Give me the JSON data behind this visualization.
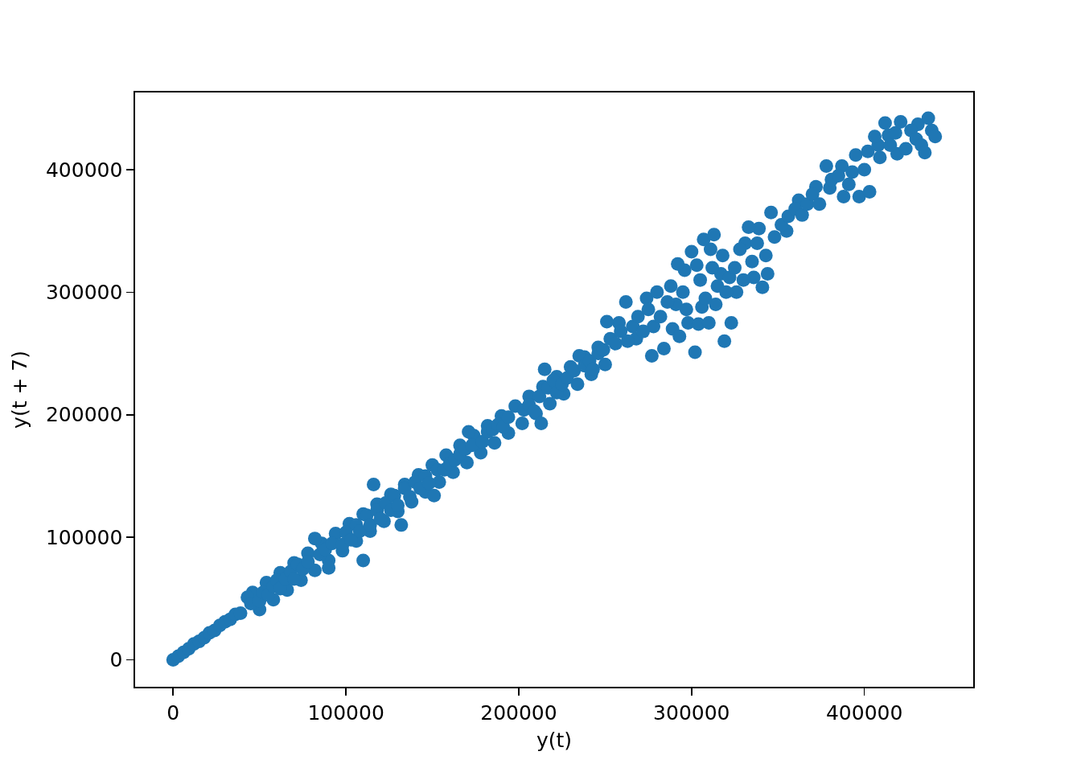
{
  "chart_data": {
    "type": "scatter",
    "xlabel": "y(t)",
    "ylabel": "y(t + 7)",
    "xlim": [
      -22000,
      463000
    ],
    "ylim": [
      -22000,
      463000
    ],
    "xticks": [
      0,
      100000,
      200000,
      300000,
      400000
    ],
    "yticks": [
      0,
      100000,
      200000,
      300000,
      400000
    ],
    "grid": false,
    "marker": "circle",
    "x": [
      46000,
      54000,
      62000,
      70000,
      78000,
      86000,
      94000,
      102000,
      110000,
      118000,
      126000,
      134000,
      142000,
      150000,
      158000,
      166000,
      174000,
      182000,
      190000,
      198000,
      206000,
      214000,
      222000,
      230000,
      238000,
      246000,
      50000,
      58000,
      66000,
      74000,
      82000,
      90000,
      98000,
      106000,
      114000,
      122000,
      130000,
      138000,
      146000,
      154000,
      162000,
      170000,
      178000,
      186000,
      194000,
      202000,
      210000,
      218000,
      226000,
      234000,
      242000,
      250000,
      258000,
      268000,
      274000,
      278000,
      288000,
      291000,
      296000,
      298000,
      303000,
      306000,
      311000,
      314000,
      317000,
      322000,
      326000,
      331000,
      336000,
      339000,
      343000,
      355000,
      362000,
      372000,
      380000,
      387000,
      393000,
      402000,
      408000,
      414000,
      419000,
      431000,
      0,
      3000,
      6000,
      9000,
      12000,
      15000,
      18000,
      21000,
      24000,
      27000,
      30000,
      33000,
      36000,
      39000,
      43000,
      45000,
      50000,
      52000,
      55000,
      58000,
      60000,
      62000,
      65000,
      68000,
      70000,
      72000,
      75000,
      78000,
      82000,
      85000,
      88000,
      90000,
      92000,
      98000,
      100000,
      103000,
      106000,
      108000,
      110000,
      112000,
      114000,
      116000,
      118000,
      120000,
      123000,
      126000,
      128000,
      130000,
      132000,
      134000,
      137000,
      140000,
      143000,
      146000,
      148000,
      151000,
      153000,
      157000,
      160000,
      163000,
      166000,
      169000,
      171000,
      173000,
      179000,
      182000,
      185000,
      188000,
      191000,
      194000,
      203000,
      206000,
      209000,
      212000,
      213000,
      215000,
      217000,
      220000,
      222000,
      225000,
      228000,
      232000,
      235000,
      238000,
      241000,
      243000,
      246000,
      249000,
      251000,
      253000,
      256000,
      259000,
      262000,
      263000,
      266000,
      269000,
      272000,
      275000,
      277000,
      280000,
      282000,
      284000,
      286000,
      289000,
      292000,
      293000,
      295000,
      297000,
      300000,
      302000,
      304000,
      305000,
      307000,
      308000,
      310000,
      312000,
      313000,
      315000,
      318000,
      319000,
      320000,
      323000,
      325000,
      328000,
      330000,
      333000,
      335000,
      338000,
      341000,
      344000,
      346000,
      348000,
      352000,
      356000,
      360000,
      364000,
      367000,
      370000,
      374000,
      378000,
      381000,
      385000,
      388000,
      391000,
      395000,
      397000,
      400000,
      403000,
      406000,
      409000,
      412000,
      415000,
      418000,
      421000,
      424000,
      427000,
      430000,
      433000,
      435000,
      437000,
      439000,
      441000
    ],
    "series": [
      {
        "color": "#1f77b4",
        "values": [
          55000,
          63000,
          71000,
          79000,
          87000,
          95000,
          103000,
          111000,
          119000,
          127000,
          135000,
          143000,
          151000,
          159000,
          167000,
          175000,
          183000,
          191000,
          199000,
          207000,
          215000,
          223000,
          231000,
          239000,
          247000,
          255000,
          41000,
          49000,
          57000,
          65000,
          73000,
          81000,
          89000,
          97000,
          105000,
          113000,
          121000,
          129000,
          137000,
          145000,
          153000,
          161000,
          169000,
          177000,
          185000,
          193000,
          201000,
          209000,
          217000,
          225000,
          233000,
          241000,
          275000,
          262000,
          295000,
          272000,
          305000,
          290000,
          318000,
          275000,
          322000,
          288000,
          335000,
          290000,
          315000,
          312000,
          300000,
          340000,
          312000,
          352000,
          330000,
          350000,
          375000,
          386000,
          385000,
          403000,
          398000,
          415000,
          420000,
          428000,
          413000,
          437000,
          0,
          3000,
          6000,
          9000,
          13000,
          15000,
          18000,
          22000,
          24000,
          28000,
          31000,
          33000,
          37000,
          38000,
          51000,
          46000,
          48000,
          55000,
          53000,
          60000,
          65000,
          58000,
          66000,
          72000,
          66000,
          78000,
          74000,
          80000,
          99000,
          86000,
          90000,
          75000,
          95000,
          94000,
          104000,
          98000,
          110000,
          105000,
          81000,
          118000,
          110000,
          143000,
          122000,
          115000,
          128000,
          122000,
          134000,
          126000,
          110000,
          140000,
          133000,
          145000,
          140000,
          150000,
          144000,
          134000,
          155000,
          155000,
          160000,
          163000,
          168000,
          172000,
          186000,
          175000,
          178000,
          186000,
          188000,
          192000,
          190000,
          198000,
          204000,
          208000,
          203000,
          215000,
          193000,
          237000,
          222000,
          228000,
          218000,
          225000,
          230000,
          236000,
          248000,
          240000,
          244000,
          237000,
          250000,
          253000,
          276000,
          262000,
          258000,
          268000,
          292000,
          260000,
          272000,
          280000,
          268000,
          286000,
          248000,
          300000,
          280000,
          254000,
          292000,
          270000,
          323000,
          264000,
          300000,
          286000,
          333000,
          251000,
          274000,
          310000,
          343000,
          295000,
          275000,
          320000,
          347000,
          305000,
          330000,
          260000,
          300000,
          275000,
          320000,
          335000,
          310000,
          353000,
          325000,
          340000,
          304000,
          315000,
          365000,
          345000,
          355000,
          362000,
          368000,
          363000,
          372000,
          380000,
          372000,
          403000,
          392000,
          395000,
          378000,
          388000,
          412000,
          378000,
          400000,
          382000,
          427000,
          410000,
          438000,
          420000,
          430000,
          439000,
          417000,
          432000,
          425000,
          420000,
          414000,
          442000,
          432000,
          427000
        ]
      }
    ]
  }
}
